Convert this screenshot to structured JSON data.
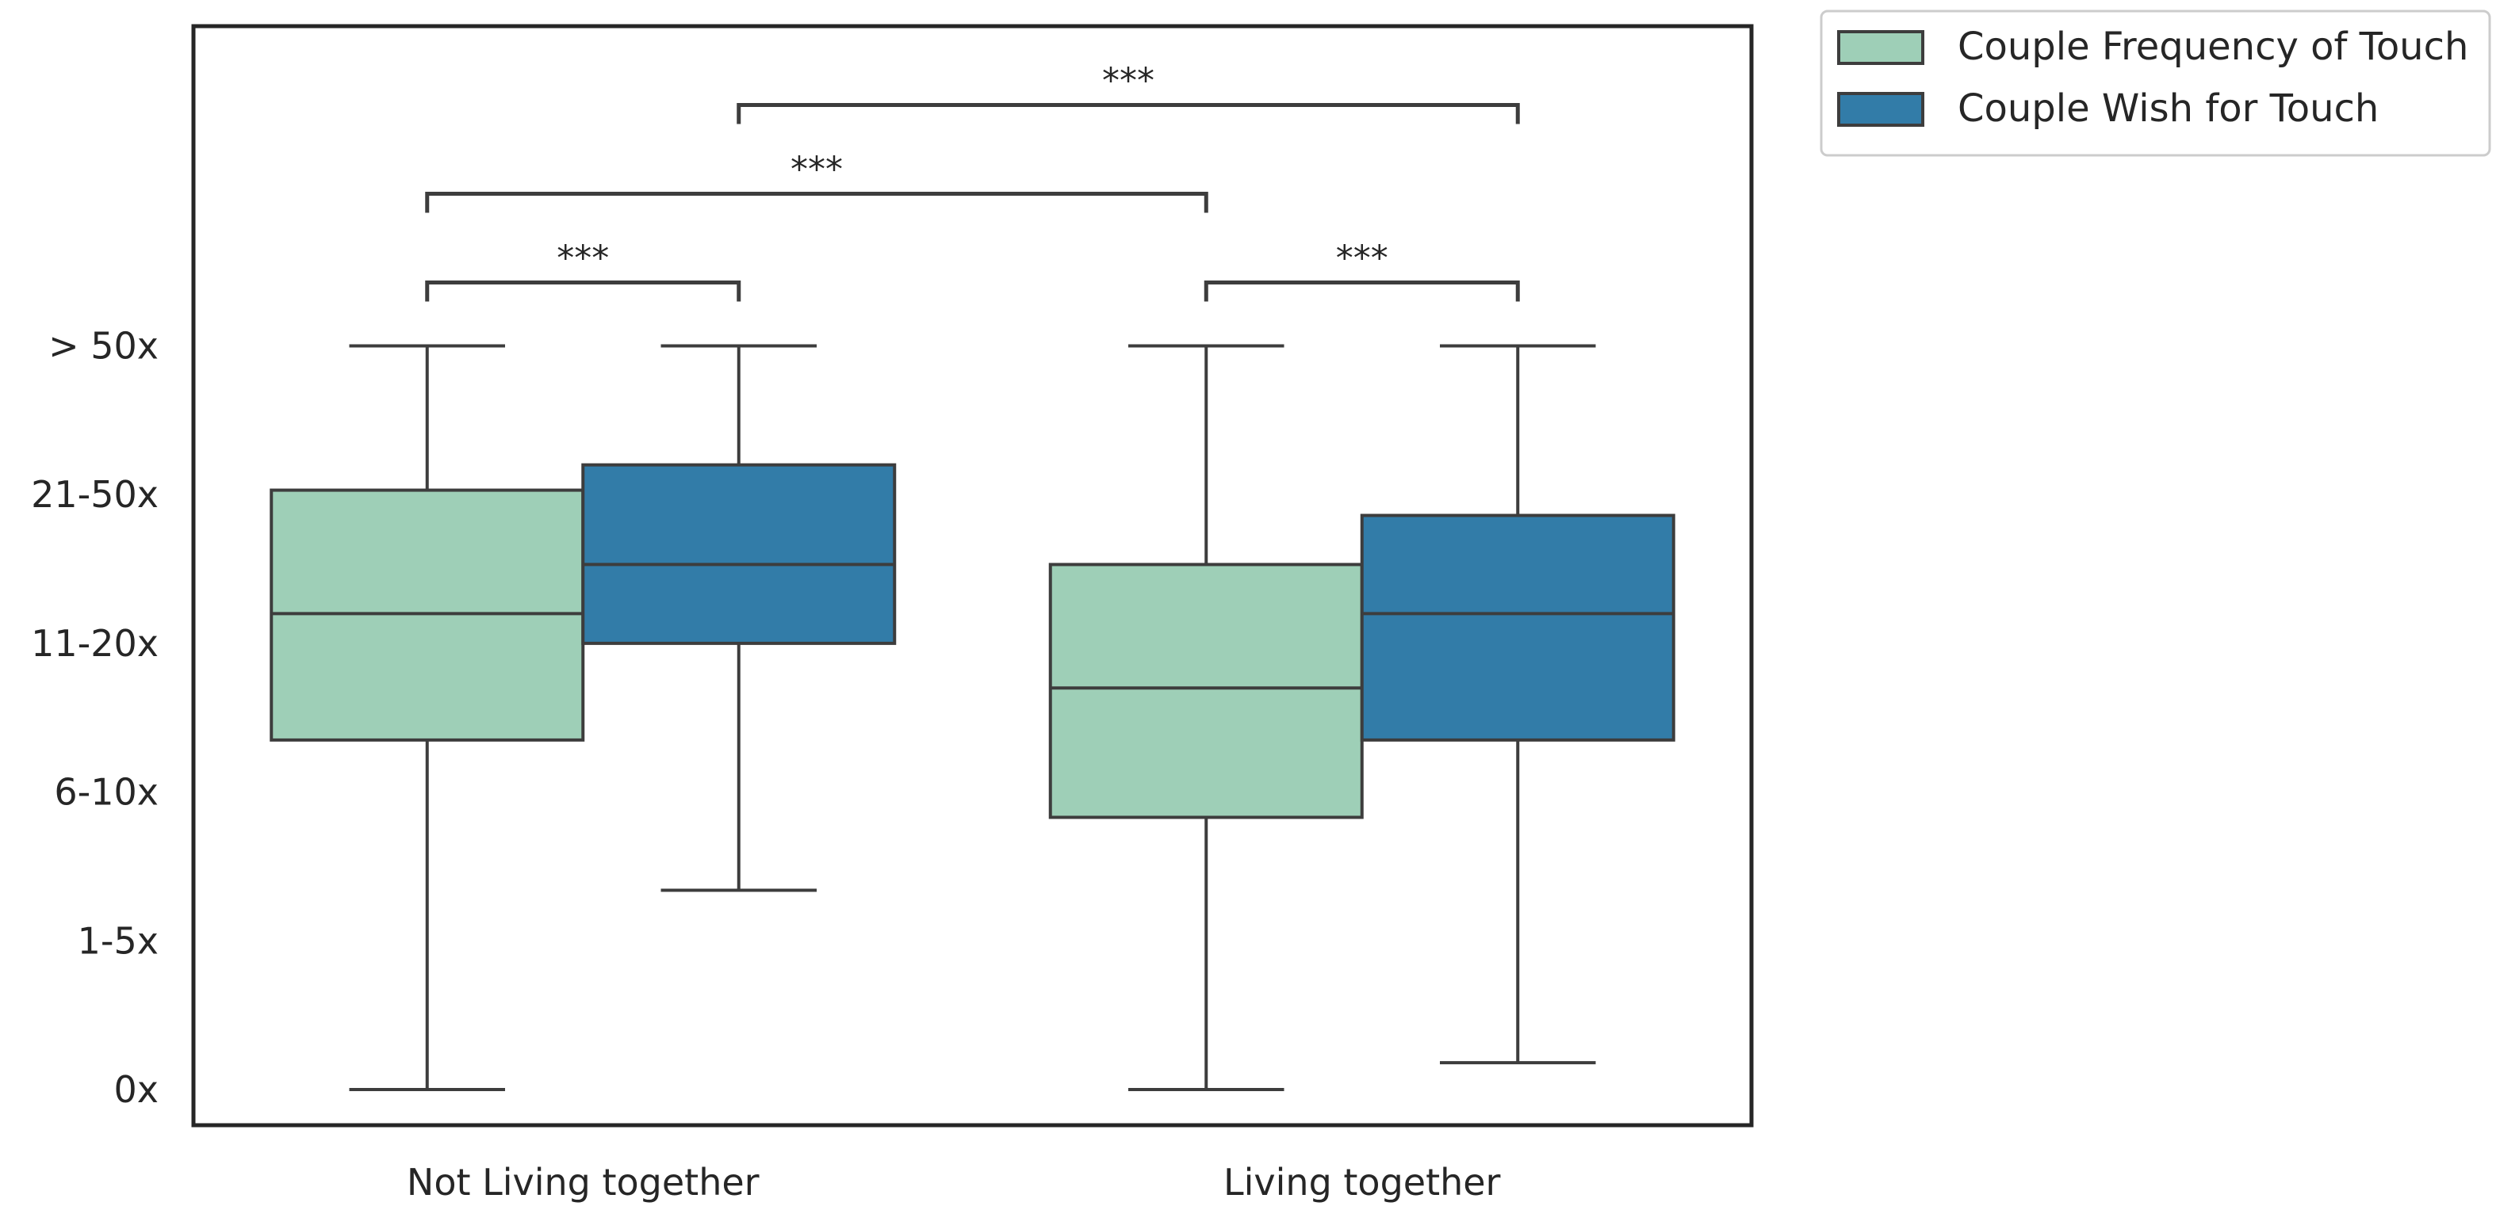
{
  "chart_data": {
    "type": "box",
    "categories": [
      "Not Living together",
      "Living together"
    ],
    "y_tick_labels": [
      "0x",
      "1-5x",
      "6-10x",
      "11-20x",
      "21-50x",
      "> 50x"
    ],
    "ylim": [
      -0.24,
      7.15
    ],
    "grid": false,
    "legend_position": "outside-top-right",
    "series": [
      {
        "name": "Couple Frequency of Touch",
        "color": "#9ecfb7",
        "boxes": [
          {
            "min": 0,
            "q1": 2.35,
            "median": 3.2,
            "q3": 4.03,
            "max": 5
          },
          {
            "min": 0,
            "q1": 1.83,
            "median": 2.7,
            "q3": 3.53,
            "max": 5
          }
        ]
      },
      {
        "name": "Couple Wish for Touch",
        "color": "#327ca8",
        "boxes": [
          {
            "min": 1.34,
            "q1": 3.0,
            "median": 3.53,
            "q3": 4.2,
            "max": 5
          },
          {
            "min": 0.18,
            "q1": 2.35,
            "median": 3.2,
            "q3": 3.86,
            "max": 5
          }
        ]
      }
    ],
    "significance": [
      {
        "label": "***",
        "from": "Not Living together / Couple Frequency of Touch",
        "to": "Not Living together / Couple Wish for Touch"
      },
      {
        "label": "***",
        "from": "Living together / Couple Frequency of Touch",
        "to": "Living together / Couple Wish for Touch"
      },
      {
        "label": "***",
        "from": "Not Living together / Couple Frequency of Touch",
        "to": "Living together / Couple Frequency of Touch"
      },
      {
        "label": "***",
        "from": "Not Living together / Couple Wish for Touch",
        "to": "Living together / Couple Wish for Touch"
      }
    ]
  }
}
